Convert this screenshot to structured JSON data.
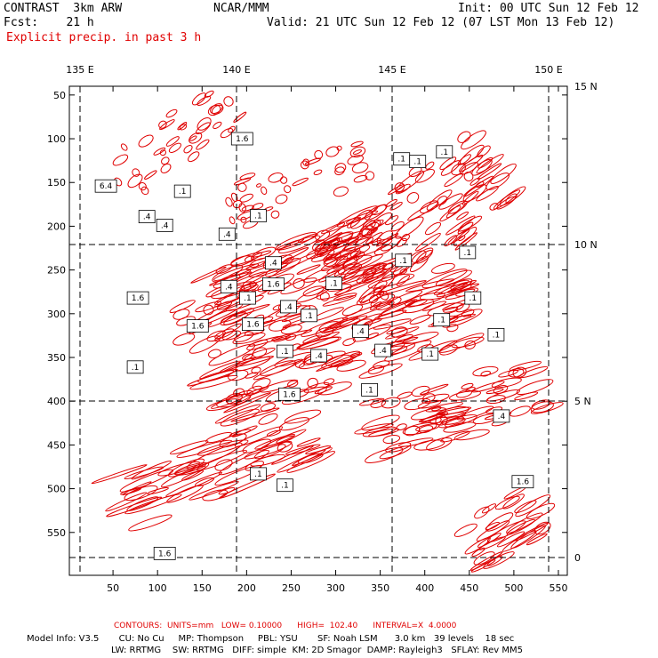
{
  "header": {
    "model_title": "CONTRAST  3km ARW",
    "center": "NCAR/MMM",
    "init": "Init: 00 UTC Sun 12 Feb 12",
    "fcst": "Fcst:    21 h",
    "valid": "Valid: 21 UTC Sun 12 Feb 12 (07 LST Mon 13 Feb 12)",
    "field": "Explicit precip. in past 3 h"
  },
  "axes": {
    "top_labels": [
      "135 E",
      "140 E",
      "145 E",
      "150 E"
    ],
    "right_labels": [
      "15 N",
      "10 N",
      "5 N",
      "0"
    ],
    "left_ticks": [
      "550",
      "500",
      "450",
      "400",
      "350",
      "300",
      "250",
      "200",
      "150",
      "100",
      "50"
    ],
    "bottom_ticks": [
      "50",
      "100",
      "150",
      "200",
      "250",
      "300",
      "350",
      "400",
      "450",
      "500",
      "550"
    ]
  },
  "contour_labels": [
    {
      "text": "1.6",
      "gx": 195,
      "gy": 500
    },
    {
      "text": "6.4",
      "gx": 42,
      "gy": 446
    },
    {
      "text": ".1",
      "gx": 128,
      "gy": 440
    },
    {
      "text": ".4",
      "gx": 88,
      "gy": 411
    },
    {
      "text": ".4",
      "gx": 108,
      "gy": 401
    },
    {
      "text": ".1",
      "gx": 213,
      "gy": 412
    },
    {
      "text": ".4",
      "gx": 178,
      "gy": 391
    },
    {
      "text": ".4",
      "gx": 230,
      "gy": 358
    },
    {
      "text": ".1",
      "gx": 374,
      "gy": 477
    },
    {
      "text": ".1",
      "gx": 392,
      "gy": 474
    },
    {
      "text": ".1",
      "gx": 422,
      "gy": 485
    },
    {
      "text": ".1",
      "gx": 448,
      "gy": 370
    },
    {
      "text": ".1",
      "gx": 376,
      "gy": 361
    },
    {
      "text": ".1",
      "gx": 298,
      "gy": 335
    },
    {
      "text": ".4",
      "gx": 180,
      "gy": 331
    },
    {
      "text": "1.6",
      "gx": 230,
      "gy": 334
    },
    {
      "text": ".1",
      "gx": 201,
      "gy": 318
    },
    {
      "text": "1.6",
      "gx": 78,
      "gy": 318
    },
    {
      "text": ".4",
      "gx": 247,
      "gy": 308
    },
    {
      "text": ".1",
      "gx": 270,
      "gy": 298
    },
    {
      "text": "1.6",
      "gx": 145,
      "gy": 286
    },
    {
      "text": "1.6",
      "gx": 207,
      "gy": 288
    },
    {
      "text": ".4",
      "gx": 328,
      "gy": 280
    },
    {
      "text": ".1",
      "gx": 243,
      "gy": 257
    },
    {
      "text": ".4",
      "gx": 281,
      "gy": 252
    },
    {
      "text": ".4",
      "gx": 353,
      "gy": 258
    },
    {
      "text": ".1",
      "gx": 406,
      "gy": 254
    },
    {
      "text": ".1",
      "gx": 75,
      "gy": 239
    },
    {
      "text": "1.6",
      "gx": 248,
      "gy": 208
    },
    {
      "text": ".1",
      "gx": 338,
      "gy": 213
    },
    {
      "text": ".1",
      "gx": 454,
      "gy": 318
    },
    {
      "text": ".1",
      "gx": 419,
      "gy": 293
    },
    {
      "text": ".1",
      "gx": 480,
      "gy": 276
    },
    {
      "text": ".4",
      "gx": 486,
      "gy": 183
    },
    {
      "text": ".1",
      "gx": 213,
      "gy": 117
    },
    {
      "text": ".1",
      "gx": 243,
      "gy": 104
    },
    {
      "text": "1.6",
      "gx": 510,
      "gy": 108
    },
    {
      "text": "1.6",
      "gx": 108,
      "gy": 26
    }
  ],
  "footer": {
    "contours": "CONTOURS:  UNITS=mm   LOW= 0.10000      HIGH=  102.40      INTERVAL=X  4.0000",
    "model_info_1": "Model Info: V3.5       CU: No Cu     MP: Thompson     PBL: YSU       SF: Noah LSM      3.0 km   39 levels    18 sec",
    "model_info_2": "LW: RRTMG    SW: RRTMG   DIFF: simple  KM: 2D Smagor  DAMP: Rayleigh3   SFLAY: Rev MM5"
  },
  "colors": {
    "contour": "#e00000",
    "grid": "#000000",
    "background": "#ffffff"
  }
}
